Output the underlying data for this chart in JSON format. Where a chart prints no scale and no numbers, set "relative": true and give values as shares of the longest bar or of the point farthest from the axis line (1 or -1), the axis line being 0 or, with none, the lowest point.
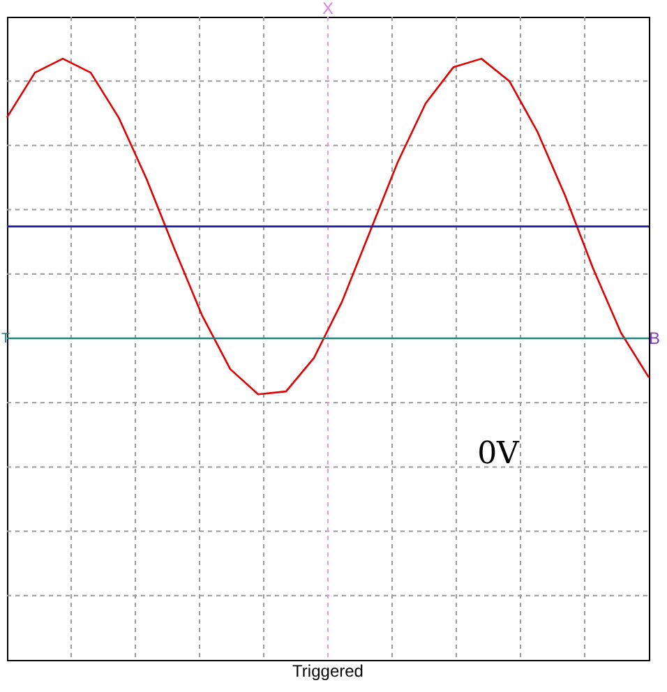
{
  "chart_data": {
    "type": "line",
    "relative": true,
    "grid": true,
    "categories": [
      null,
      null,
      null,
      null,
      null,
      null,
      null,
      null,
      null,
      null,
      null,
      null,
      null,
      null,
      null,
      null,
      null,
      null,
      null,
      null,
      null,
      null,
      null,
      null
    ],
    "series": [
      {
        "color": "#e00000",
        "values": [
          0.79,
          0.95,
          1.0,
          0.95,
          0.79,
          0.57,
          0.32,
          0.08,
          -0.11,
          -0.2,
          -0.19,
          -0.07,
          0.13,
          0.38,
          0.63,
          0.84,
          0.97,
          1.0,
          0.92,
          0.74,
          0.51,
          0.25,
          0.02,
          -0.14
        ]
      },
      {
        "color": "#1a1ab0",
        "values": [
          0.4,
          0.4,
          0.4,
          0.4,
          0.4,
          0.4,
          0.4,
          0.4,
          0.4,
          0.4,
          0.4,
          0.4,
          0.4,
          0.4,
          0.4,
          0.4,
          0.4,
          0.4,
          0.4,
          0.4,
          0.4,
          0.4,
          0.4,
          0.4
        ]
      }
    ],
    "ref_lines": [
      {
        "axis": "y",
        "value": 0,
        "color": "#1f8080"
      }
    ],
    "annotations": [
      "X",
      "T",
      "B",
      "0V",
      "Triggered"
    ]
  }
}
